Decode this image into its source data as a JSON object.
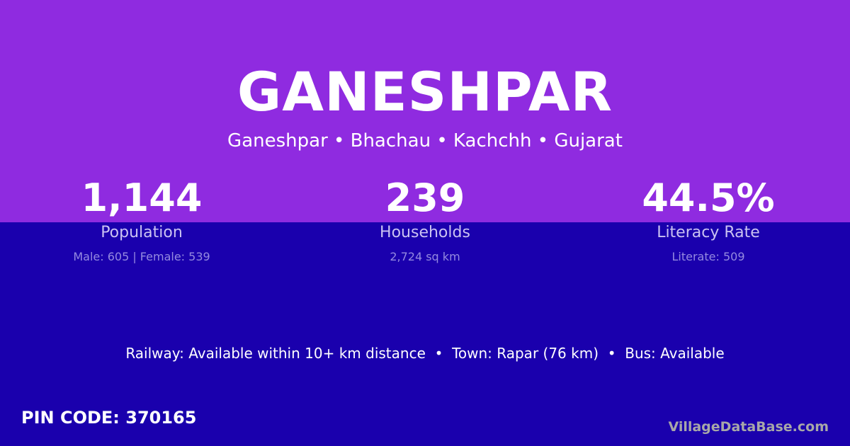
{
  "colors": {
    "top_band": "#8f2be0",
    "bottom_band": "#1a00ad"
  },
  "title": "GANESHPAR",
  "subtitle": "Ganeshpar • Bhachau • Kachchh • Gujarat",
  "stats": [
    {
      "value": "1,144",
      "label": "Population",
      "detail": "Male: 605 | Female: 539"
    },
    {
      "value": "239",
      "label": "Households",
      "detail": "2,724 sq km"
    },
    {
      "value": "44.5%",
      "label": "Literacy Rate",
      "detail": "Literate: 509"
    }
  ],
  "facts": "Railway: Available within 10+ km distance  •  Town: Rapar (76 km)  •  Bus: Available",
  "pin_code": "PIN CODE: 370165",
  "watermark": "VillageDataBase.com"
}
